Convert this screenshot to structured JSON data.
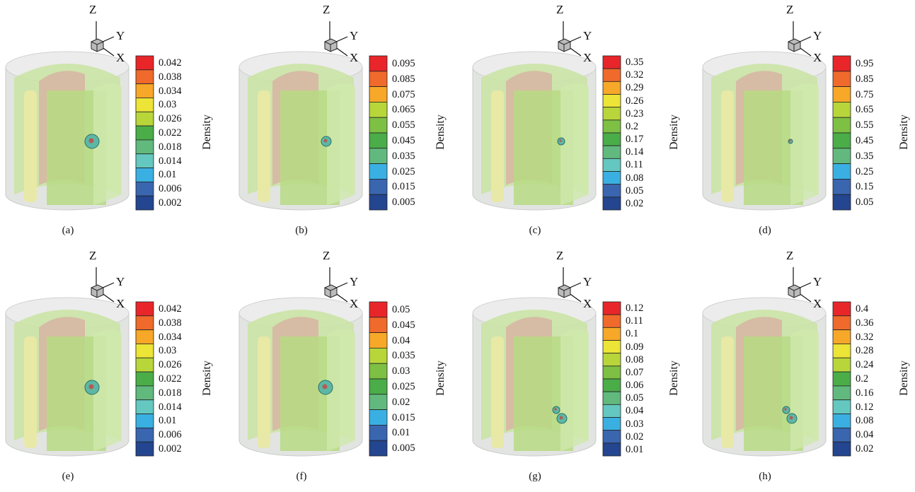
{
  "axes": {
    "z": "Z",
    "y": "Y",
    "x": "X"
  },
  "colorbar_title": "Density",
  "colorbar_colors": [
    "#e8262a",
    "#f06a2b",
    "#f7a828",
    "#ece436",
    "#b8d63a",
    "#7dc043",
    "#4aad48",
    "#62b97e",
    "#64c8c0",
    "#3ab0e2",
    "#3a66b0",
    "#24458f"
  ],
  "panels": [
    {
      "label": "(a)",
      "ticks": [
        "0.042",
        "0.038",
        "0.034",
        "0.03",
        "0.026",
        "0.022",
        "0.018",
        "0.014",
        "0.01",
        "0.006",
        "0.002"
      ],
      "blob": "large"
    },
    {
      "label": "(b)",
      "ticks": [
        "0.095",
        "0.085",
        "0.075",
        "0.065",
        "0.055",
        "0.045",
        "0.035",
        "0.025",
        "0.015",
        "0.005"
      ],
      "blob": "medium"
    },
    {
      "label": "(c)",
      "ticks": [
        "0.35",
        "0.32",
        "0.29",
        "0.26",
        "0.23",
        "0.2",
        "0.17",
        "0.14",
        "0.11",
        "0.08",
        "0.05",
        "0.02"
      ],
      "blob": "small"
    },
    {
      "label": "(d)",
      "ticks": [
        "0.95",
        "0.85",
        "0.75",
        "0.65",
        "0.55",
        "0.45",
        "0.35",
        "0.25",
        "0.15",
        "0.05"
      ],
      "blob": "tiny"
    },
    {
      "label": "(e)",
      "ticks": [
        "0.042",
        "0.038",
        "0.034",
        "0.03",
        "0.026",
        "0.022",
        "0.018",
        "0.014",
        "0.01",
        "0.006",
        "0.002"
      ],
      "blob": "large"
    },
    {
      "label": "(f)",
      "ticks": [
        "0.05",
        "0.045",
        "0.04",
        "0.035",
        "0.03",
        "0.025",
        "0.02",
        "0.015",
        "0.01",
        "0.005"
      ],
      "blob": "large"
    },
    {
      "label": "(g)",
      "ticks": [
        "0.12",
        "0.11",
        "0.1",
        "0.09",
        "0.08",
        "0.07",
        "0.06",
        "0.05",
        "0.04",
        "0.03",
        "0.02",
        "0.01"
      ],
      "blob": "double"
    },
    {
      "label": "(h)",
      "ticks": [
        "0.4",
        "0.36",
        "0.32",
        "0.28",
        "0.24",
        "0.2",
        "0.16",
        "0.12",
        "0.08",
        "0.04",
        "0.02"
      ],
      "blob": "double"
    }
  ]
}
